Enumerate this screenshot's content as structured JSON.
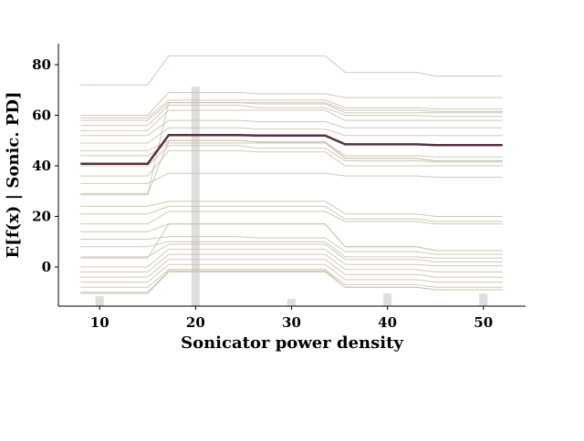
{
  "chart_data": {
    "type": "ice",
    "xlabel": "Sonicator power density",
    "ylabel": "E[f(x) | Sonic. PD]",
    "xlim": [
      5.7,
      54.4
    ],
    "ylim": [
      -15.5,
      88.3
    ],
    "xticks": [
      10,
      20,
      30,
      40,
      50
    ],
    "yticks": [
      0,
      20,
      40,
      60,
      80
    ],
    "x": [
      8,
      15,
      17.2,
      24.5,
      26.5,
      33.5,
      35.6,
      43,
      45,
      52
    ],
    "ice_color": "#c9c0a8",
    "ice_lines": [
      [
        72,
        72,
        83.5,
        83.5,
        83.5,
        83.5,
        77,
        77,
        75.5,
        75.5
      ],
      [
        60,
        60,
        69,
        69,
        68.5,
        68.5,
        67,
        67,
        67,
        67
      ],
      [
        59,
        59,
        66,
        66,
        66,
        66,
        63,
        63,
        62.5,
        62.5
      ],
      [
        58,
        58,
        65,
        65,
        64.5,
        64.5,
        61,
        61,
        61,
        61
      ],
      [
        56,
        56,
        64,
        64,
        63,
        63,
        60,
        60,
        59.5,
        59.5
      ],
      [
        54,
        54,
        62,
        62,
        62,
        62,
        58,
        58,
        58,
        58
      ],
      [
        52,
        52,
        58,
        58,
        57.5,
        57.5,
        55,
        55,
        55,
        55
      ],
      [
        49,
        49,
        55,
        55,
        54.5,
        54.5,
        52,
        52,
        52,
        52
      ],
      [
        46,
        46,
        50,
        50,
        49.5,
        49.5,
        44,
        44,
        43.5,
        43.5
      ],
      [
        44,
        44,
        49,
        49,
        49,
        49,
        43,
        43,
        42,
        42
      ],
      [
        40,
        40,
        48,
        48,
        47,
        47,
        42,
        42,
        41.5,
        41.5
      ],
      [
        36,
        36,
        46,
        46,
        45.5,
        45.5,
        40,
        40,
        40,
        40
      ],
      [
        33,
        33,
        37,
        37,
        37,
        37,
        36,
        36,
        35.5,
        35.5
      ],
      [
        29,
        29,
        65,
        65,
        65,
        65,
        62,
        62,
        61.5,
        61.5
      ],
      [
        28.5,
        28.5,
        50,
        50,
        49.5,
        49.5,
        43,
        43,
        42,
        42
      ],
      [
        24,
        24,
        26,
        26,
        26,
        26,
        21,
        21,
        20,
        20
      ],
      [
        21,
        21,
        24,
        24,
        24,
        24,
        19,
        19,
        18,
        18
      ],
      [
        17,
        17,
        22,
        22,
        22,
        22,
        18,
        18,
        17,
        17
      ],
      [
        14,
        14,
        17,
        17,
        17,
        17,
        8,
        8,
        6.5,
        6.5
      ],
      [
        11,
        11,
        12,
        12,
        11.5,
        11.5,
        6,
        6,
        5,
        5
      ],
      [
        8,
        8,
        10,
        10,
        10,
        10,
        4,
        4,
        3.5,
        3.5
      ],
      [
        4,
        4,
        9,
        9,
        9,
        9,
        3,
        3,
        2,
        2
      ],
      [
        3.5,
        3.5,
        17,
        17,
        17,
        17,
        8,
        8,
        6.5,
        6.5
      ],
      [
        0,
        0,
        7,
        7,
        7,
        7,
        1,
        1,
        0.5,
        0.5
      ],
      [
        -2,
        -2,
        5,
        5,
        5,
        5,
        -1,
        -1,
        -2,
        -2
      ],
      [
        -4,
        -4,
        3,
        3,
        3,
        3,
        -3,
        -3,
        -4,
        -4
      ],
      [
        -6,
        -6,
        1,
        1,
        1,
        1,
        -5,
        -5,
        -6,
        -6
      ],
      [
        -8,
        -8,
        -1,
        -1,
        -1,
        -1,
        -7,
        -7,
        -8,
        -8
      ],
      [
        -10,
        -10,
        -1.5,
        -1.5,
        -1.5,
        -1.5,
        -8,
        -8,
        -9,
        -9
      ],
      [
        -10.5,
        -10.5,
        -2,
        -2,
        -2,
        -2,
        -8,
        -8,
        -9,
        -9
      ]
    ],
    "pd": {
      "color": "#5a3040",
      "values": [
        40.8,
        40.8,
        52.2,
        52.2,
        52,
        52,
        48.5,
        48.5,
        48.2,
        48.2
      ]
    },
    "deciles": {
      "color": "#dedede",
      "x": [
        10,
        20,
        30,
        40,
        50
      ],
      "values": [
        -11.5,
        71.4,
        -12.6,
        -10.5,
        -10.5
      ]
    }
  }
}
